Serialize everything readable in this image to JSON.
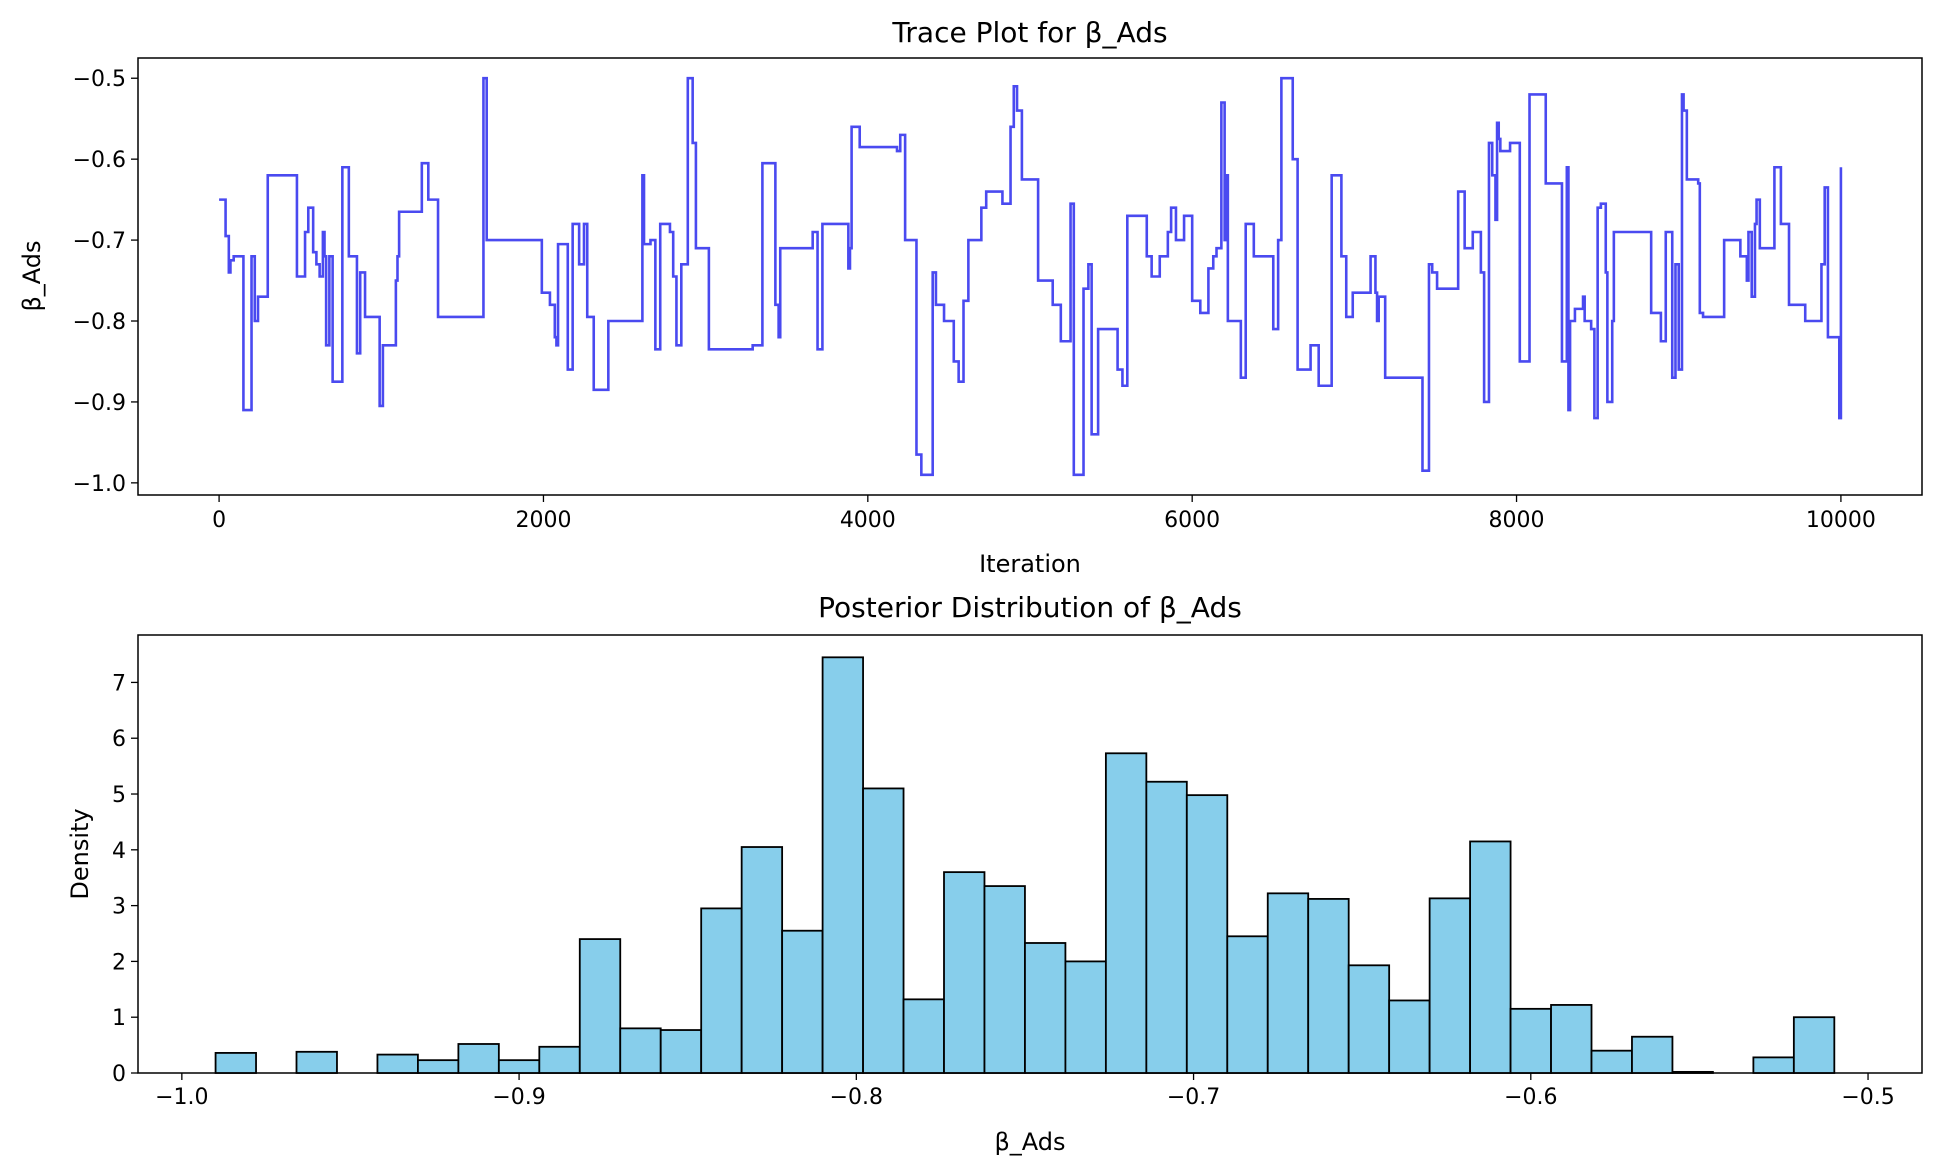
{
  "colors": {
    "trace": "#4a4af0",
    "hist_fill": "#87ceeb",
    "hist_edge": "#000000"
  },
  "chart_data": [
    {
      "type": "line",
      "title": "Trace Plot for β_Ads",
      "xlabel": "Iteration",
      "ylabel": "β_Ads",
      "xlim": [
        -500,
        10500
      ],
      "ylim": [
        -1.015,
        -0.475
      ],
      "xticks": [
        0,
        2000,
        4000,
        6000,
        8000,
        10000
      ],
      "xtick_labels": [
        "0",
        "2000",
        "4000",
        "6000",
        "8000",
        "10000"
      ],
      "yticks": [
        -0.5,
        -0.6,
        -0.7,
        -0.8,
        -0.9,
        -1.0
      ],
      "ytick_labels": [
        "−0.5",
        "−0.6",
        "−0.7",
        "−0.8",
        "−0.9",
        "−1.0"
      ],
      "grid": false,
      "series": [
        {
          "style": "step",
          "x": [
            0,
            40,
            60,
            70,
            90,
            150,
            200,
            220,
            240,
            300,
            480,
            530,
            550,
            580,
            600,
            620,
            640,
            650,
            660,
            680,
            700,
            760,
            800,
            850,
            870,
            900,
            990,
            1010,
            1040,
            1090,
            1100,
            1110,
            1250,
            1290,
            1350,
            1630,
            1640,
            1650,
            1990,
            2040,
            2070,
            2080,
            2090,
            2150,
            2180,
            2220,
            2250,
            2270,
            2310,
            2400,
            2470,
            2560,
            2610,
            2620,
            2660,
            2690,
            2720,
            2730,
            2780,
            2800,
            2820,
            2850,
            2890,
            2920,
            2940,
            3020,
            3210,
            3280,
            3290,
            3350,
            3430,
            3450,
            3460,
            3500,
            3660,
            3690,
            3720,
            3870,
            3880,
            3890,
            3900,
            3950,
            3980,
            4100,
            4180,
            4200,
            4230,
            4300,
            4310,
            4330,
            4400,
            4420,
            4470,
            4530,
            4560,
            4590,
            4620,
            4700,
            4730,
            4780,
            4830,
            4860,
            4880,
            4900,
            4920,
            4950,
            5050,
            5140,
            5190,
            5250,
            5270,
            5330,
            5360,
            5380,
            5420,
            5500,
            5540,
            5570,
            5600,
            5620,
            5680,
            5720,
            5750,
            5760,
            5780,
            5800,
            5820,
            5850,
            5870,
            5900,
            5950,
            6000,
            6050,
            6100,
            6130,
            6150,
            6180,
            6200,
            6210,
            6220,
            6300,
            6330,
            6350,
            6380,
            6500,
            6520,
            6530,
            6550,
            6580,
            6620,
            6650,
            6730,
            6780,
            6860,
            6920,
            6950,
            6990,
            7040,
            7100,
            7130,
            7140,
            7150,
            7190,
            7210,
            7260,
            7420,
            7460,
            7480,
            7510,
            7600,
            7620,
            7640,
            7680,
            7730,
            7750,
            7780,
            7800,
            7830,
            7850,
            7870,
            7880,
            7890,
            7900,
            7960,
            8000,
            8020,
            8080,
            8180,
            8280,
            8310,
            8320,
            8330,
            8360,
            8380,
            8410,
            8420,
            8460,
            8480,
            8500,
            8520,
            8540,
            8550,
            8560,
            8590,
            8600,
            8800,
            8830,
            8890,
            8900,
            8920,
            8940,
            8960,
            8980,
            9000,
            9020,
            9030,
            9050,
            9100,
            9120,
            9130,
            9150,
            9160,
            9180,
            9200,
            9230,
            9280,
            9380,
            9420,
            9430,
            9450,
            9470,
            9480,
            9500,
            9530,
            9560,
            9590,
            9600,
            9630,
            9680,
            9700,
            9780,
            9880,
            9890,
            9900,
            9920,
            9980,
            9990,
            10000
          ],
          "y": [
            -0.65,
            -0.695,
            -0.74,
            -0.725,
            -0.72,
            -0.91,
            -0.72,
            -0.8,
            -0.77,
            -0.62,
            -0.745,
            -0.69,
            -0.66,
            -0.715,
            -0.73,
            -0.745,
            -0.69,
            -0.72,
            -0.83,
            -0.72,
            -0.875,
            -0.61,
            -0.72,
            -0.84,
            -0.74,
            -0.795,
            -0.905,
            -0.83,
            -0.83,
            -0.75,
            -0.72,
            -0.665,
            -0.605,
            -0.65,
            -0.795,
            -0.5,
            -0.5,
            -0.7,
            -0.765,
            -0.78,
            -0.82,
            -0.83,
            -0.705,
            -0.86,
            -0.68,
            -0.73,
            -0.68,
            -0.795,
            -0.885,
            -0.8,
            -0.8,
            -0.8,
            -0.62,
            -0.705,
            -0.7,
            -0.835,
            -0.68,
            -0.68,
            -0.69,
            -0.745,
            -0.83,
            -0.73,
            -0.5,
            -0.58,
            -0.71,
            -0.835,
            -0.835,
            -0.835,
            -0.83,
            -0.605,
            -0.78,
            -0.82,
            -0.71,
            -0.71,
            -0.69,
            -0.835,
            -0.68,
            -0.68,
            -0.735,
            -0.71,
            -0.56,
            -0.585,
            -0.585,
            -0.585,
            -0.59,
            -0.57,
            -0.7,
            -0.965,
            -0.965,
            -0.99,
            -0.74,
            -0.78,
            -0.8,
            -0.85,
            -0.875,
            -0.775,
            -0.7,
            -0.66,
            -0.64,
            -0.64,
            -0.655,
            -0.655,
            -0.56,
            -0.51,
            -0.54,
            -0.625,
            -0.75,
            -0.78,
            -0.825,
            -0.655,
            -0.99,
            -0.76,
            -0.73,
            -0.94,
            -0.81,
            -0.81,
            -0.86,
            -0.88,
            -0.67,
            -0.67,
            -0.67,
            -0.72,
            -0.745,
            -0.745,
            -0.745,
            -0.72,
            -0.72,
            -0.69,
            -0.66,
            -0.7,
            -0.67,
            -0.775,
            -0.79,
            -0.735,
            -0.72,
            -0.71,
            -0.53,
            -0.7,
            -0.62,
            -0.8,
            -0.87,
            -0.68,
            -0.68,
            -0.72,
            -0.81,
            -0.81,
            -0.7,
            -0.5,
            -0.5,
            -0.6,
            -0.86,
            -0.83,
            -0.88,
            -0.62,
            -0.72,
            -0.795,
            -0.765,
            -0.765,
            -0.72,
            -0.765,
            -0.8,
            -0.77,
            -0.87,
            -0.87,
            -0.87,
            -0.985,
            -0.73,
            -0.74,
            -0.76,
            -0.76,
            -0.76,
            -0.64,
            -0.71,
            -0.69,
            -0.69,
            -0.74,
            -0.9,
            -0.58,
            -0.62,
            -0.675,
            -0.555,
            -0.575,
            -0.59,
            -0.58,
            -0.58,
            -0.85,
            -0.52,
            -0.63,
            -0.85,
            -0.61,
            -0.91,
            -0.8,
            -0.785,
            -0.785,
            -0.77,
            -0.8,
            -0.81,
            -0.92,
            -0.66,
            -0.655,
            -0.655,
            -0.74,
            -0.9,
            -0.8,
            -0.69,
            -0.69,
            -0.79,
            -0.825,
            -0.825,
            -0.69,
            -0.69,
            -0.87,
            -0.73,
            -0.86,
            -0.52,
            -0.54,
            -0.625,
            -0.625,
            -0.63,
            -0.79,
            -0.795,
            -0.795,
            -0.795,
            -0.795,
            -0.795,
            -0.7,
            -0.72,
            -0.75,
            -0.69,
            -0.77,
            -0.68,
            -0.65,
            -0.71,
            -0.71,
            -0.71,
            -0.61,
            -0.61,
            -0.68,
            -0.78,
            -0.78,
            -0.8,
            -0.73,
            -0.73,
            -0.635,
            -0.82,
            -0.82,
            -0.92,
            -0.61
          ]
        }
      ]
    },
    {
      "type": "bar",
      "title": "Posterior Distribution of β_Ads",
      "xlabel": "β_Ads",
      "ylabel": "Density",
      "xlim": [
        -1.013,
        -0.484
      ],
      "ylim": [
        0,
        7.85
      ],
      "xticks": [
        -1.0,
        -0.9,
        -0.8,
        -0.7,
        -0.6,
        -0.5
      ],
      "xtick_labels": [
        "−1.0",
        "−0.9",
        "−0.8",
        "−0.7",
        "−0.6",
        "−0.5"
      ],
      "yticks": [
        0,
        1,
        2,
        3,
        4,
        5,
        6,
        7
      ],
      "ytick_labels": [
        "0",
        "1",
        "2",
        "3",
        "4",
        "5",
        "6",
        "7"
      ],
      "grid": false,
      "bin_start": -0.99,
      "bin_width": 0.012,
      "values": [
        0.36,
        0,
        0.38,
        0,
        0.33,
        0.23,
        0.52,
        0.23,
        0.47,
        2.4,
        0.8,
        0.77,
        2.95,
        4.05,
        2.55,
        7.45,
        5.1,
        1.32,
        3.6,
        3.35,
        2.33,
        2.0,
        5.73,
        5.22,
        4.98,
        2.45,
        3.22,
        3.12,
        1.93,
        1.3,
        3.13,
        4.15,
        1.15,
        1.22,
        0.4,
        0.65,
        0.02,
        0,
        0.28,
        1.0
      ]
    }
  ]
}
